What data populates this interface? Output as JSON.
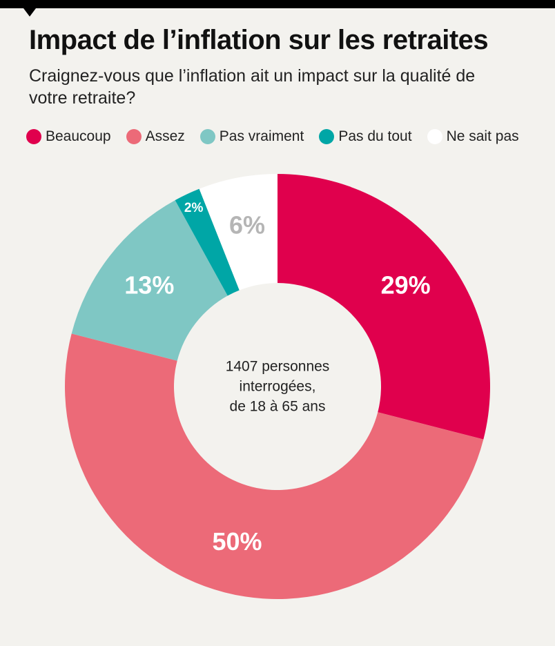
{
  "chart_data": {
    "type": "pie",
    "title": "Impact de l’inflation sur les retraites",
    "subtitle": "Craignez-vous que l’inflation ait un impact sur la qualité de votre retraite?",
    "categories": [
      "Beaucoup",
      "Assez",
      "Pas vraiment",
      "Pas du tout",
      "Ne sait pas"
    ],
    "values": [
      29,
      50,
      13,
      2,
      6
    ],
    "value_labels": [
      "29%",
      "50%",
      "13%",
      "2%",
      "6%"
    ],
    "colors": [
      "#e0004d",
      "#ec6a78",
      "#7fc7c4",
      "#00a6a6",
      "#ffffff"
    ],
    "center_text": [
      "1407 personnes",
      "interrogées,",
      "de 18 à 65 ans"
    ]
  }
}
